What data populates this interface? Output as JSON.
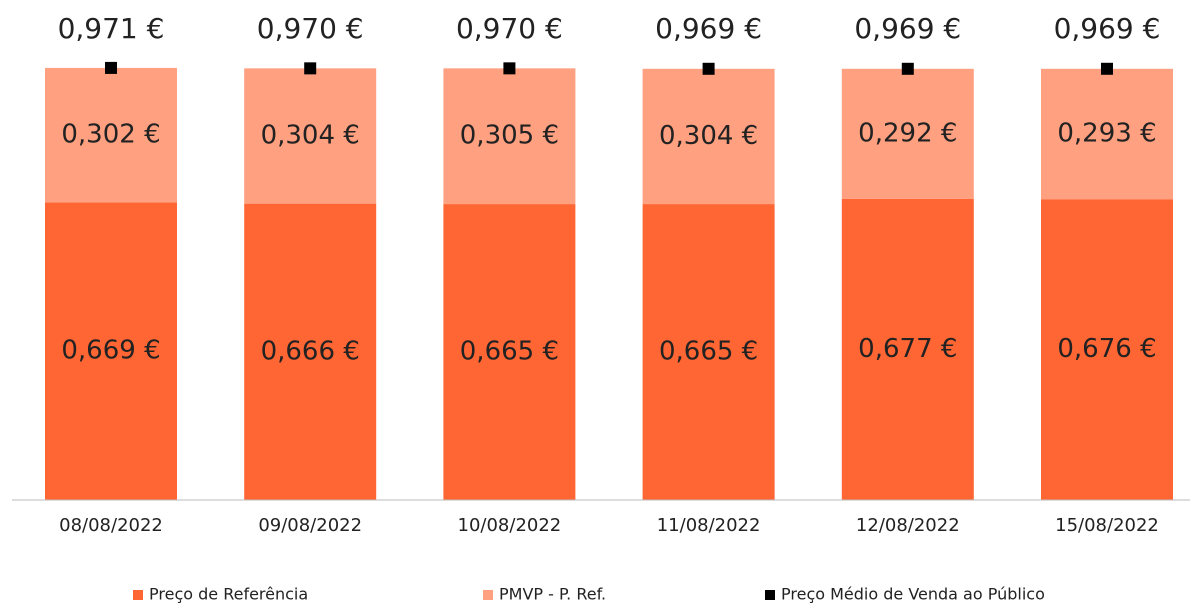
{
  "chart_data": {
    "type": "bar",
    "categories": [
      "08/08/2022",
      "09/08/2022",
      "10/08/2022",
      "11/08/2022",
      "12/08/2022",
      "15/08/2022"
    ],
    "ylim": [
      0,
      1
    ],
    "legend": "bottom",
    "series": [
      {
        "name": "Preço de Referência",
        "color": "#ff6633",
        "values": [
          0.669,
          0.666,
          0.665,
          0.665,
          0.677,
          0.676
        ],
        "value_labels": [
          "0,669 €",
          "0,666 €",
          "0,665 €",
          "0,665 €",
          "0,677 €",
          "0,676 €"
        ]
      },
      {
        "name": "PMVP - P. Ref.",
        "color": "#ffa080",
        "values": [
          0.302,
          0.304,
          0.305,
          0.304,
          0.292,
          0.293
        ],
        "value_labels": [
          "0,302 €",
          "0,304 €",
          "0,305 €",
          "0,304 €",
          "0,292 €",
          "0,293 €"
        ]
      },
      {
        "name": "Preço Médio de Venda ao Público",
        "color": "#000000",
        "type": "marker",
        "values": [
          0.971,
          0.97,
          0.97,
          0.969,
          0.969,
          0.969
        ],
        "value_labels": [
          "0,971 €",
          "0,970 €",
          "0,970 €",
          "0,969 €",
          "0,969 €",
          "0,969 €"
        ]
      }
    ]
  }
}
